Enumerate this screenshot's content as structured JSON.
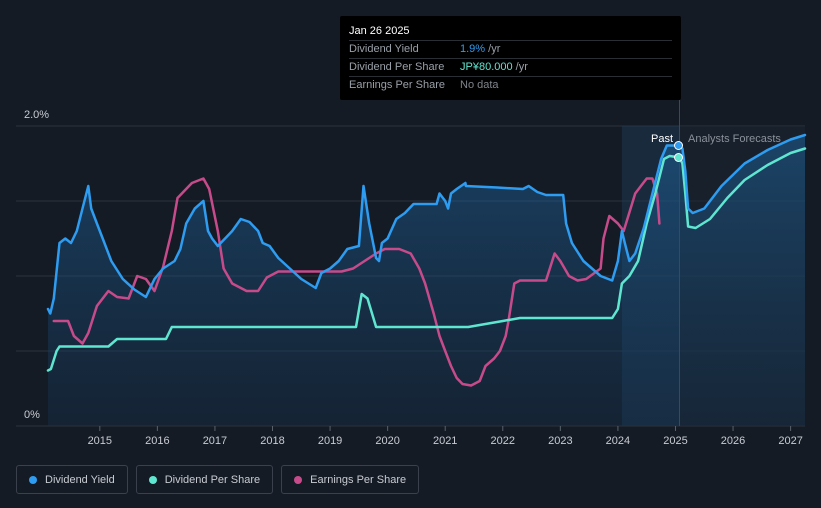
{
  "tooltip": {
    "date": "Jan 26 2025",
    "rows": [
      {
        "label": "Dividend Yield",
        "value": "1.9%",
        "unit": " /yr"
      },
      {
        "label": "Dividend Per Share",
        "value": "JP¥80.000",
        "unit": " /yr"
      },
      {
        "label": "Earnings Per Share",
        "value": "No data",
        "unit": ""
      }
    ]
  },
  "regions": {
    "past_label": "Past",
    "forecast_label": "Analysts Forecasts"
  },
  "legend": [
    {
      "label": "Dividend Yield",
      "color": "#2e9cf0"
    },
    {
      "label": "Dividend Per Share",
      "color": "#5fe6d0"
    },
    {
      "label": "Earnings Per Share",
      "color": "#c74b8b"
    }
  ],
  "chart_data": {
    "type": "line",
    "y_ticks": [
      "0%",
      "2.0%"
    ],
    "ylim": [
      0,
      2.0
    ],
    "xlim": [
      2014.1,
      2027.25
    ],
    "x_ticks": [
      "2015",
      "2016",
      "2017",
      "2018",
      "2019",
      "2020",
      "2021",
      "2022",
      "2023",
      "2024",
      "2025",
      "2026",
      "2027"
    ],
    "past_forecast_divider": 2025.07,
    "series": [
      {
        "name": "Dividend Yield",
        "color": "#2e9cf0",
        "unit": "%",
        "points": [
          [
            2014.1,
            0.78
          ],
          [
            2014.14,
            0.75
          ],
          [
            2014.2,
            0.85
          ],
          [
            2014.3,
            1.22
          ],
          [
            2014.4,
            1.25
          ],
          [
            2014.5,
            1.22
          ],
          [
            2014.6,
            1.3
          ],
          [
            2014.7,
            1.45
          ],
          [
            2014.8,
            1.6
          ],
          [
            2014.85,
            1.45
          ],
          [
            2014.95,
            1.35
          ],
          [
            2015.05,
            1.25
          ],
          [
            2015.2,
            1.1
          ],
          [
            2015.4,
            0.98
          ],
          [
            2015.6,
            0.91
          ],
          [
            2015.8,
            0.86
          ],
          [
            2015.95,
            0.98
          ],
          [
            2016.1,
            1.05
          ],
          [
            2016.3,
            1.1
          ],
          [
            2016.4,
            1.18
          ],
          [
            2016.5,
            1.35
          ],
          [
            2016.65,
            1.45
          ],
          [
            2016.8,
            1.5
          ],
          [
            2016.88,
            1.3
          ],
          [
            2016.95,
            1.25
          ],
          [
            2017.05,
            1.2
          ],
          [
            2017.2,
            1.26
          ],
          [
            2017.3,
            1.3
          ],
          [
            2017.45,
            1.38
          ],
          [
            2017.6,
            1.36
          ],
          [
            2017.75,
            1.3
          ],
          [
            2017.83,
            1.22
          ],
          [
            2017.95,
            1.2
          ],
          [
            2018.1,
            1.12
          ],
          [
            2018.3,
            1.05
          ],
          [
            2018.5,
            0.98
          ],
          [
            2018.75,
            0.92
          ],
          [
            2018.85,
            1.02
          ],
          [
            2019.0,
            1.05
          ],
          [
            2019.15,
            1.1
          ],
          [
            2019.3,
            1.18
          ],
          [
            2019.5,
            1.2
          ],
          [
            2019.58,
            1.6
          ],
          [
            2019.68,
            1.35
          ],
          [
            2019.8,
            1.12
          ],
          [
            2019.85,
            1.1
          ],
          [
            2019.9,
            1.22
          ],
          [
            2020.0,
            1.25
          ],
          [
            2020.15,
            1.38
          ],
          [
            2020.3,
            1.42
          ],
          [
            2020.45,
            1.48
          ],
          [
            2020.85,
            1.48
          ],
          [
            2020.9,
            1.55
          ],
          [
            2021.0,
            1.5
          ],
          [
            2021.05,
            1.45
          ],
          [
            2021.1,
            1.55
          ],
          [
            2021.2,
            1.58
          ],
          [
            2021.35,
            1.62
          ],
          [
            2021.36,
            1.6
          ],
          [
            2021.9,
            1.59
          ],
          [
            2022.35,
            1.58
          ],
          [
            2022.45,
            1.6
          ],
          [
            2022.6,
            1.56
          ],
          [
            2022.75,
            1.54
          ],
          [
            2023.05,
            1.54
          ],
          [
            2023.1,
            1.35
          ],
          [
            2023.2,
            1.22
          ],
          [
            2023.4,
            1.1
          ],
          [
            2023.7,
            1.0
          ],
          [
            2023.9,
            0.97
          ],
          [
            2024.0,
            1.1
          ],
          [
            2024.07,
            1.3
          ],
          [
            2024.12,
            1.22
          ],
          [
            2024.2,
            1.1
          ],
          [
            2024.3,
            1.15
          ],
          [
            2024.45,
            1.32
          ],
          [
            2024.6,
            1.55
          ],
          [
            2024.75,
            1.78
          ],
          [
            2024.85,
            1.87
          ],
          [
            2025.07,
            1.87
          ],
          [
            2025.12,
            1.85
          ],
          [
            2025.17,
            1.7
          ],
          [
            2025.22,
            1.45
          ],
          [
            2025.3,
            1.42
          ],
          [
            2025.5,
            1.45
          ],
          [
            2025.8,
            1.6
          ],
          [
            2026.2,
            1.75
          ],
          [
            2026.6,
            1.84
          ],
          [
            2027.0,
            1.91
          ],
          [
            2027.25,
            1.94
          ]
        ]
      },
      {
        "name": "Dividend Per Share",
        "color": "#5fe6d0",
        "unit": "JP¥",
        "points": [
          [
            2014.1,
            0.37
          ],
          [
            2014.15,
            0.38
          ],
          [
            2014.25,
            0.5
          ],
          [
            2014.3,
            0.53
          ],
          [
            2014.5,
            0.53
          ],
          [
            2015.15,
            0.53
          ],
          [
            2015.3,
            0.58
          ],
          [
            2015.95,
            0.58
          ],
          [
            2016.15,
            0.58
          ],
          [
            2016.25,
            0.66
          ],
          [
            2016.4,
            0.66
          ],
          [
            2019.45,
            0.66
          ],
          [
            2019.55,
            0.88
          ],
          [
            2019.65,
            0.85
          ],
          [
            2019.8,
            0.66
          ],
          [
            2021.4,
            0.66
          ],
          [
            2022.0,
            0.7
          ],
          [
            2022.3,
            0.72
          ],
          [
            2023.9,
            0.72
          ],
          [
            2024.0,
            0.78
          ],
          [
            2024.07,
            0.95
          ],
          [
            2024.2,
            1.0
          ],
          [
            2024.35,
            1.1
          ],
          [
            2024.5,
            1.35
          ],
          [
            2024.65,
            1.55
          ],
          [
            2024.8,
            1.78
          ],
          [
            2024.9,
            1.8
          ],
          [
            2025.07,
            1.79
          ],
          [
            2025.12,
            1.75
          ],
          [
            2025.17,
            1.55
          ],
          [
            2025.22,
            1.33
          ],
          [
            2025.35,
            1.32
          ],
          [
            2025.6,
            1.38
          ],
          [
            2025.9,
            1.52
          ],
          [
            2026.2,
            1.64
          ],
          [
            2026.6,
            1.74
          ],
          [
            2027.0,
            1.82
          ],
          [
            2027.25,
            1.85
          ]
        ]
      },
      {
        "name": "Earnings Per Share",
        "color": "#c74b8b",
        "unit": "JP¥",
        "points": [
          [
            2014.2,
            0.7
          ],
          [
            2014.45,
            0.7
          ],
          [
            2014.55,
            0.6
          ],
          [
            2014.7,
            0.55
          ],
          [
            2014.8,
            0.62
          ],
          [
            2014.95,
            0.8
          ],
          [
            2015.15,
            0.9
          ],
          [
            2015.3,
            0.86
          ],
          [
            2015.5,
            0.85
          ],
          [
            2015.65,
            1.0
          ],
          [
            2015.8,
            0.98
          ],
          [
            2015.95,
            0.9
          ],
          [
            2016.1,
            1.06
          ],
          [
            2016.25,
            1.3
          ],
          [
            2016.35,
            1.52
          ],
          [
            2016.6,
            1.62
          ],
          [
            2016.8,
            1.65
          ],
          [
            2016.9,
            1.58
          ],
          [
            2017.05,
            1.3
          ],
          [
            2017.15,
            1.05
          ],
          [
            2017.3,
            0.95
          ],
          [
            2017.55,
            0.9
          ],
          [
            2017.75,
            0.9
          ],
          [
            2017.9,
            0.99
          ],
          [
            2018.1,
            1.03
          ],
          [
            2019.2,
            1.03
          ],
          [
            2019.4,
            1.05
          ],
          [
            2019.6,
            1.1
          ],
          [
            2019.8,
            1.15
          ],
          [
            2019.95,
            1.18
          ],
          [
            2020.2,
            1.18
          ],
          [
            2020.4,
            1.15
          ],
          [
            2020.55,
            1.05
          ],
          [
            2020.65,
            0.95
          ],
          [
            2020.8,
            0.75
          ],
          [
            2020.9,
            0.6
          ],
          [
            2021.0,
            0.5
          ],
          [
            2021.1,
            0.4
          ],
          [
            2021.2,
            0.32
          ],
          [
            2021.3,
            0.28
          ],
          [
            2021.45,
            0.27
          ],
          [
            2021.6,
            0.3
          ],
          [
            2021.7,
            0.4
          ],
          [
            2021.85,
            0.45
          ],
          [
            2021.95,
            0.5
          ],
          [
            2022.05,
            0.6
          ],
          [
            2022.1,
            0.7
          ],
          [
            2022.2,
            0.95
          ],
          [
            2022.3,
            0.97
          ],
          [
            2022.55,
            0.97
          ],
          [
            2022.75,
            0.97
          ],
          [
            2022.9,
            1.15
          ],
          [
            2023.0,
            1.1
          ],
          [
            2023.15,
            1.0
          ],
          [
            2023.3,
            0.97
          ],
          [
            2023.45,
            0.98
          ],
          [
            2023.7,
            1.05
          ],
          [
            2023.75,
            1.25
          ],
          [
            2023.85,
            1.4
          ],
          [
            2024.0,
            1.35
          ],
          [
            2024.1,
            1.3
          ],
          [
            2024.3,
            1.55
          ],
          [
            2024.4,
            1.6
          ],
          [
            2024.5,
            1.65
          ],
          [
            2024.6,
            1.65
          ],
          [
            2024.68,
            1.55
          ],
          [
            2024.72,
            1.35
          ]
        ]
      }
    ]
  }
}
